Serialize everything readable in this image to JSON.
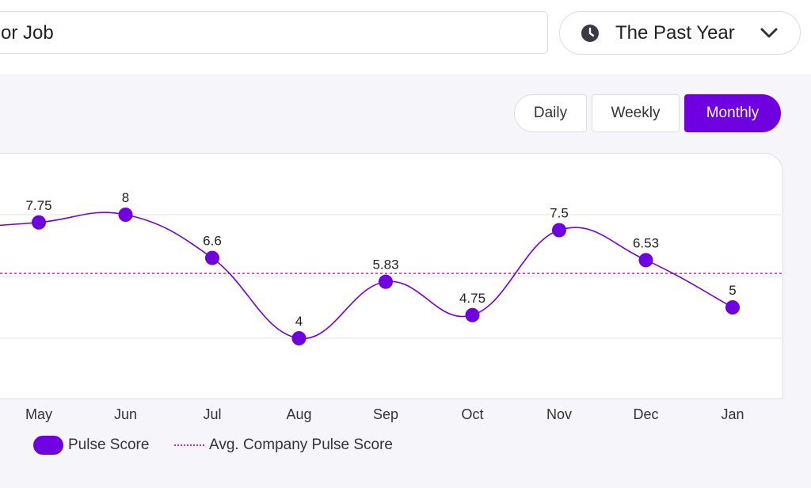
{
  "search": {
    "value": "or Job"
  },
  "range_select": {
    "label": "The Past Year",
    "icon": "clock-icon"
  },
  "granularity": {
    "options": [
      "Daily",
      "Weekly",
      "Monthly"
    ],
    "selected": "Monthly"
  },
  "colors": {
    "accent": "#6f00e0",
    "average_line": "#e020b0"
  },
  "legend": {
    "pulse": "Pulse Score",
    "average": "Avg. Company Pulse Score"
  },
  "chart_data": {
    "type": "line",
    "categories": [
      "May",
      "Jun",
      "Jul",
      "Aug",
      "Sep",
      "Oct",
      "Nov",
      "Dec",
      "Jan"
    ],
    "series": [
      {
        "name": "Pulse Score",
        "values": [
          7.75,
          8,
          6.6,
          4,
          5.83,
          4.75,
          7.5,
          6.53,
          5
        ],
        "labels": [
          "7.75",
          "8",
          "6.6",
          "4",
          "5.83",
          "4.75",
          "7.5",
          "6.53",
          "5"
        ]
      },
      {
        "name": "Avg. Company Pulse Score",
        "constant": 6.1
      }
    ],
    "ylim": [
      2,
      10
    ],
    "grid": true,
    "legend": "bottom-left"
  }
}
